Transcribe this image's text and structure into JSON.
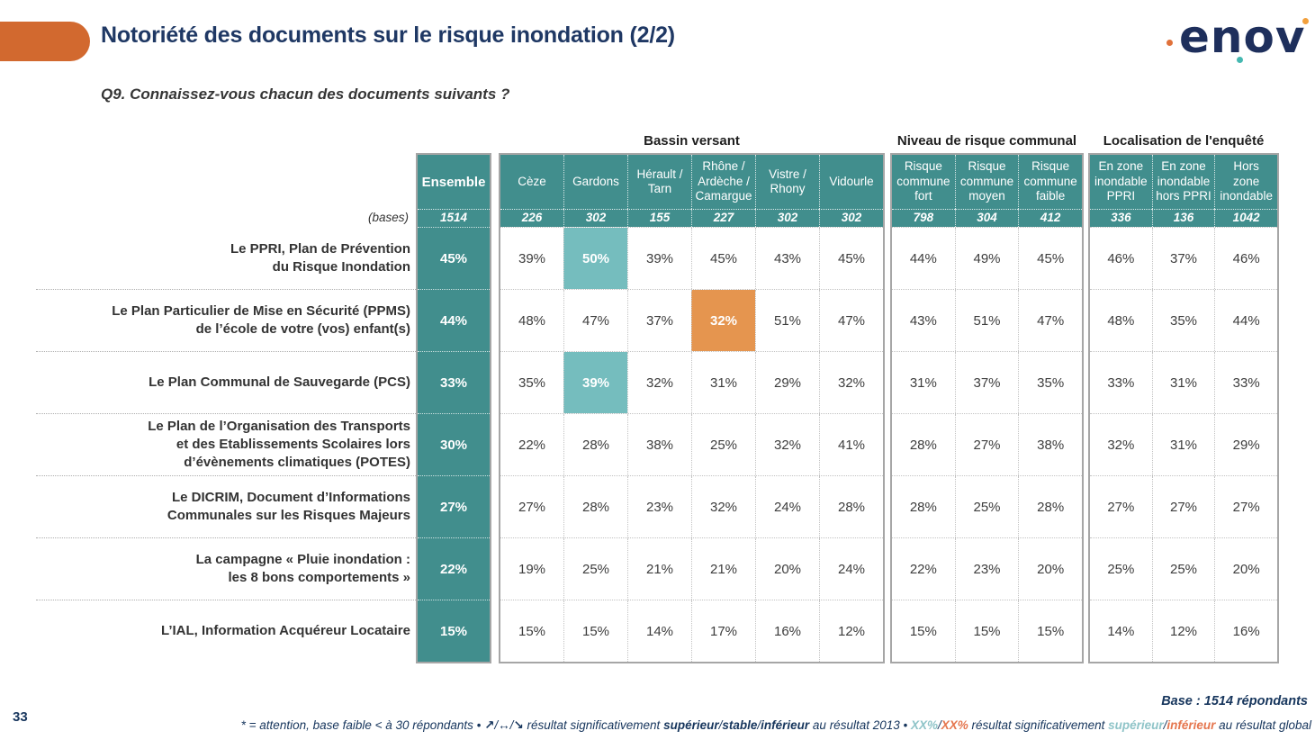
{
  "slide": {
    "title": "Notoriété des documents sur le risque inondation (2/2)",
    "question": "Q9. Connaissez-vous chacun des documents suivants ?",
    "page_number": "33",
    "base_note": "Base : 1514 répondants",
    "logo_text": "enov"
  },
  "colors": {
    "accent_orange": "#D2692F",
    "header_teal": "#418E8D",
    "highlight_teal": "#75BDBE",
    "highlight_orange": "#E5954F",
    "title_navy": "#1F3864",
    "footer_teal": "#8FC4C8",
    "footer_orange": "#E5764E",
    "border_gray": "#A6A6A6"
  },
  "table": {
    "bases_label": "(bases)",
    "ensemble": {
      "header": "Ensemble",
      "base": "1514"
    },
    "groups": [
      {
        "title": "Bassin versant",
        "columns": [
          "Cèze",
          "Gardons",
          "Hérault /\nTarn",
          "Rhône /\nArdèche /\nCamargue",
          "Vistre /\nRhony",
          "Vidourle"
        ],
        "bases": [
          "226",
          "302",
          "155",
          "227",
          "302",
          "302"
        ]
      },
      {
        "title": "Niveau de risque communal",
        "columns": [
          "Risque\ncommune\nfort",
          "Risque\ncommune\nmoyen",
          "Risque\ncommune\nfaible"
        ],
        "bases": [
          "798",
          "304",
          "412"
        ]
      },
      {
        "title": "Localisation de l'enquêté",
        "columns": [
          "En zone\ninondable\nPPRI",
          "En zone\ninondable\nhors PPRI",
          "Hors\nzone\ninondable"
        ],
        "bases": [
          "336",
          "136",
          "1042"
        ]
      }
    ],
    "rows": [
      {
        "label": "Le PPRI, Plan de Prévention\ndu Risque Inondation",
        "ensemble": "45%",
        "values": [
          [
            "39%",
            "50%",
            "39%",
            "45%",
            "43%",
            "45%"
          ],
          [
            "44%",
            "49%",
            "45%"
          ],
          [
            "46%",
            "37%",
            "46%"
          ]
        ],
        "highlights": [
          {
            "group": 0,
            "col": 1,
            "type": "teal"
          }
        ]
      },
      {
        "label": "Le Plan Particulier de Mise en Sécurité (PPMS)\nde l’école de votre (vos) enfant(s)",
        "ensemble": "44%",
        "values": [
          [
            "48%",
            "47%",
            "37%",
            "32%",
            "51%",
            "47%"
          ],
          [
            "43%",
            "51%",
            "47%"
          ],
          [
            "48%",
            "35%",
            "44%"
          ]
        ],
        "highlights": [
          {
            "group": 0,
            "col": 3,
            "type": "orange"
          }
        ]
      },
      {
        "label": "Le Plan Communal de Sauvegarde (PCS)",
        "ensemble": "33%",
        "values": [
          [
            "35%",
            "39%",
            "32%",
            "31%",
            "29%",
            "32%"
          ],
          [
            "31%",
            "37%",
            "35%"
          ],
          [
            "33%",
            "31%",
            "33%"
          ]
        ],
        "highlights": [
          {
            "group": 0,
            "col": 1,
            "type": "teal"
          }
        ]
      },
      {
        "label": "Le Plan de l’Organisation des Transports\net des Etablissements Scolaires lors\nd’évènements climatiques (POTES)",
        "ensemble": "30%",
        "values": [
          [
            "22%",
            "28%",
            "38%",
            "25%",
            "32%",
            "41%"
          ],
          [
            "28%",
            "27%",
            "38%"
          ],
          [
            "32%",
            "31%",
            "29%"
          ]
        ],
        "highlights": []
      },
      {
        "label": "Le DICRIM, Document d’Informations\nCommunales sur les Risques Majeurs",
        "ensemble": "27%",
        "values": [
          [
            "27%",
            "28%",
            "23%",
            "32%",
            "24%",
            "28%"
          ],
          [
            "28%",
            "25%",
            "28%"
          ],
          [
            "27%",
            "27%",
            "27%"
          ]
        ],
        "highlights": []
      },
      {
        "label": "La campagne « Pluie inondation :\nles 8 bons comportements »",
        "ensemble": "22%",
        "values": [
          [
            "19%",
            "25%",
            "21%",
            "21%",
            "20%",
            "24%"
          ],
          [
            "22%",
            "23%",
            "20%"
          ],
          [
            "25%",
            "25%",
            "20%"
          ]
        ],
        "highlights": []
      },
      {
        "label": "L’IAL, Information Acquéreur Locataire",
        "ensemble": "15%",
        "values": [
          [
            "15%",
            "15%",
            "14%",
            "17%",
            "16%",
            "12%"
          ],
          [
            "15%",
            "15%",
            "15%"
          ],
          [
            "14%",
            "12%",
            "16%"
          ]
        ],
        "highlights": []
      }
    ]
  },
  "legend_segments": [
    {
      "text": "* = attention, base faible < à 30 répondants • ",
      "style": "plain"
    },
    {
      "text": "↗",
      "style": "bold"
    },
    {
      "text": "/",
      "style": "plain"
    },
    {
      "text": "↔",
      "style": "bold"
    },
    {
      "text": "/",
      "style": "plain"
    },
    {
      "text": "↘",
      "style": "bold"
    },
    {
      "text": "  résultat significativement ",
      "style": "plain"
    },
    {
      "text": "supérieur",
      "style": "bold"
    },
    {
      "text": "/",
      "style": "plain"
    },
    {
      "text": "stable",
      "style": "bold"
    },
    {
      "text": "/",
      "style": "plain"
    },
    {
      "text": "inférieur",
      "style": "bold"
    },
    {
      "text": " au résultat 2013 • ",
      "style": "plain"
    },
    {
      "text": "XX%",
      "style": "teal"
    },
    {
      "text": "/",
      "style": "plain"
    },
    {
      "text": "XX%",
      "style": "orange"
    },
    {
      "text": " résultat significativement ",
      "style": "plain"
    },
    {
      "text": "supérieur",
      "style": "teal"
    },
    {
      "text": "/",
      "style": "plain"
    },
    {
      "text": "inférieur",
      "style": "orange"
    },
    {
      "text": " au résultat global",
      "style": "plain"
    }
  ]
}
